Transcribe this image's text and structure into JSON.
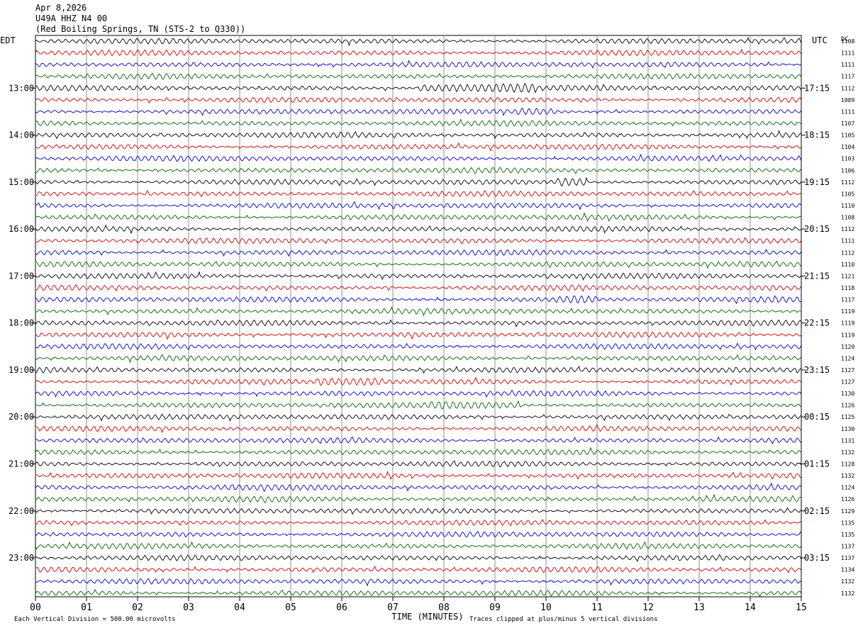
{
  "header": {
    "date": "Apr 8,2026",
    "station": "U49A HHZ N4 00",
    "location": "(Red Boiling Springs, TN (STS-2 to Q330))"
  },
  "chart_data": {
    "type": "line",
    "title": "",
    "left_axis_label": "EDT",
    "right_axis_label": "UTC",
    "dc_label": "DC",
    "xlabel": "TIME (MINUTES)",
    "x_ticks": [
      "00",
      "01",
      "02",
      "03",
      "04",
      "05",
      "06",
      "07",
      "08",
      "09",
      "10",
      "11",
      "12",
      "13",
      "14",
      "15"
    ],
    "xlim": [
      0,
      15
    ],
    "grid": true,
    "rows_per_hour": 4,
    "trace_colors": [
      "#000000",
      "#d40000",
      "#0000c8",
      "#006400"
    ],
    "left_time_labels": [
      "13:00",
      "14:00",
      "15:00",
      "16:00",
      "17:00",
      "18:00",
      "19:00",
      "20:00",
      "21:00",
      "22:00",
      "23:00"
    ],
    "right_time_labels": [
      "17:15",
      "18:15",
      "19:15",
      "20:15",
      "21:15",
      "22:15",
      "23:15",
      "00:15",
      "01:15",
      "02:15",
      "03:15"
    ],
    "dc_offsets": [
      "1108",
      "1111",
      "1111",
      "1117",
      "1112",
      "1089",
      "1111",
      "1107",
      "1105",
      "1104",
      "1103",
      "1106",
      "1112",
      "1105",
      "1110",
      "1108",
      "1112",
      "1111",
      "1112",
      "1110",
      "1121",
      "1118",
      "1117",
      "1119",
      "1119",
      "1119",
      "1120",
      "1124",
      "1127",
      "1127",
      "1130",
      "1126",
      "1125",
      "1130",
      "1131",
      "1132",
      "1128",
      "1132",
      "1124",
      "1126",
      "1129",
      "1135",
      "1135",
      "1137",
      "1137",
      "1134",
      "1132",
      "1132"
    ],
    "footer_left": "Each Vertical Division =  500.00 microvolts",
    "footer_right": "Traces clipped at plus/minus 5 vertical divisions"
  }
}
